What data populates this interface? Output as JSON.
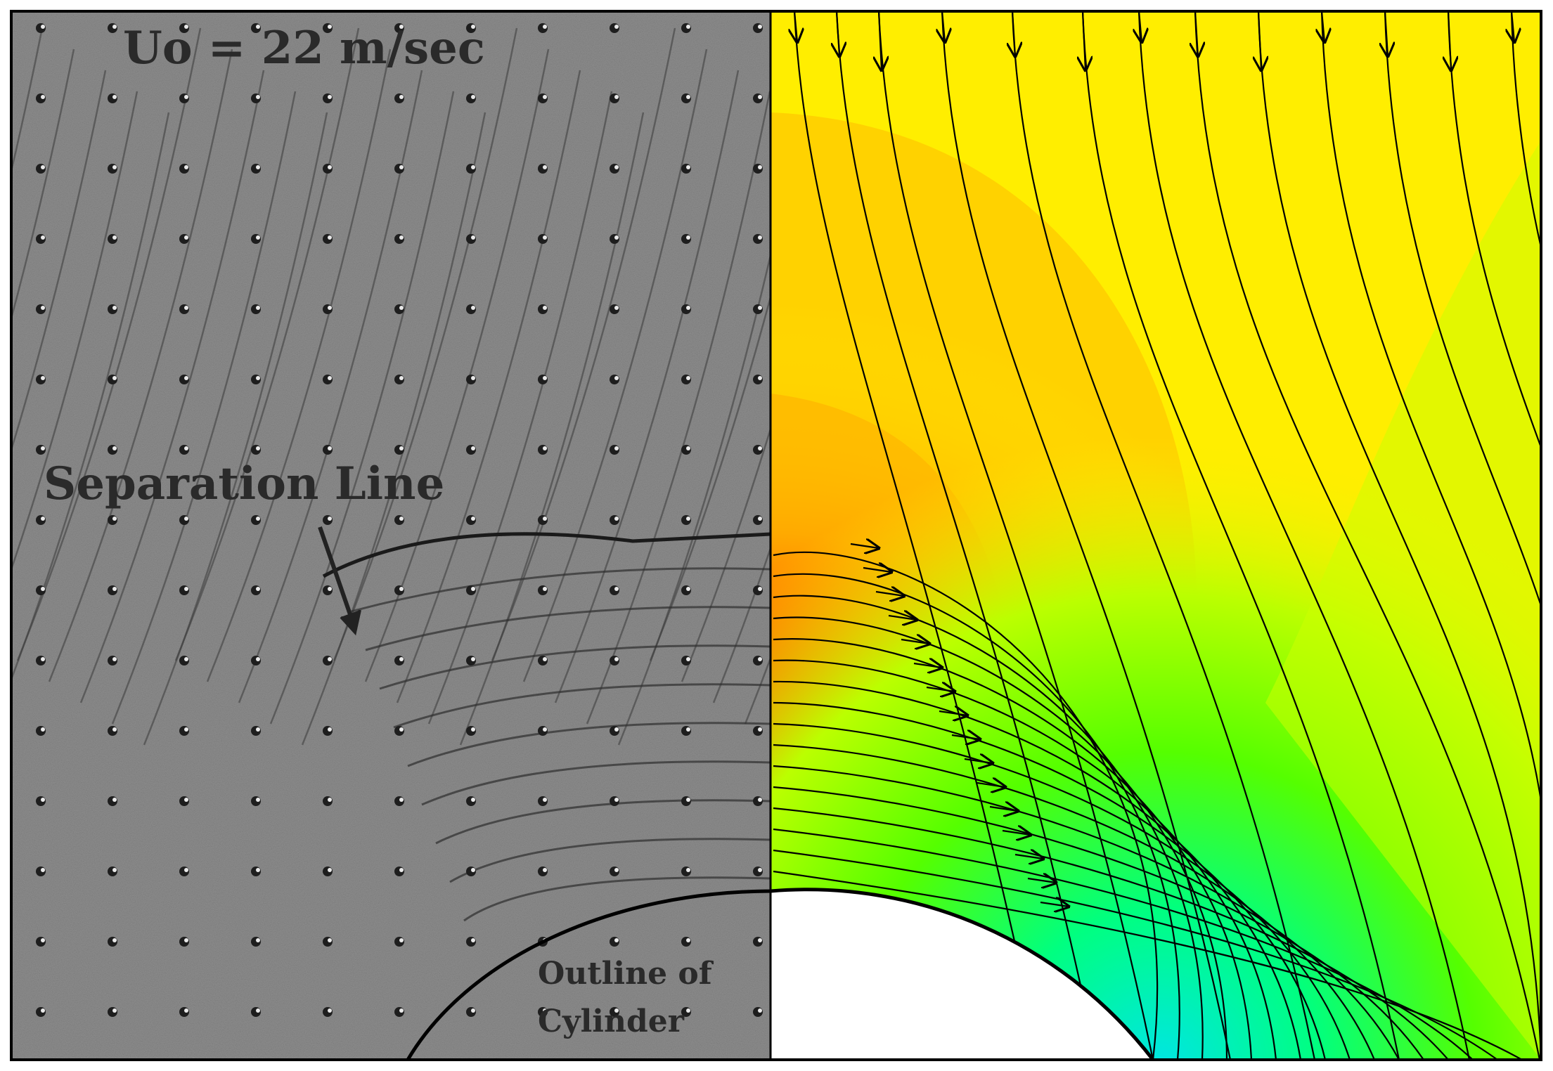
{
  "left_panel": {
    "velocity_label": "Uo = 22 m/sec",
    "separation_label": "Separation Line",
    "outline_label_line1": "Outline of",
    "outline_label_line2": "Cylinder"
  },
  "colors": {
    "frame": "#000000",
    "photo_background": "#8e8e8e",
    "contour_levels": [
      "#00e5e5",
      "#00ff80",
      "#44ff00",
      "#99ff00",
      "#ccff00",
      "#ffee00",
      "#ffcc00",
      "#ffaa00",
      "#ff7700",
      "#ff3300",
      "#ff0000"
    ]
  }
}
